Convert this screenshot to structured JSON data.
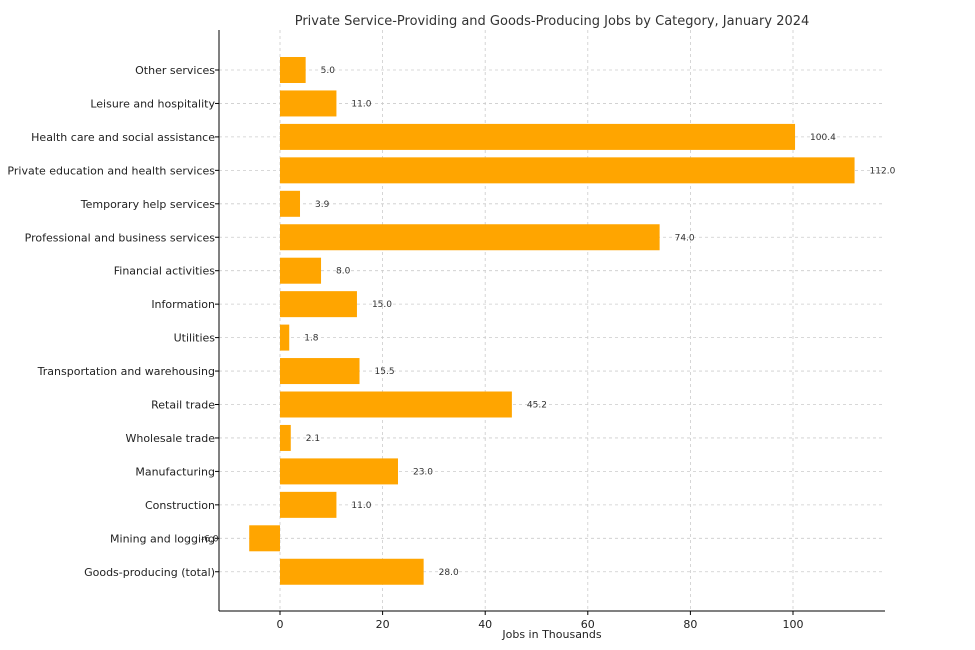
{
  "chart_data": {
    "type": "bar",
    "orientation": "horizontal",
    "title": "Private Service-Providing and Goods-Producing Jobs by Category, January 2024",
    "xlabel": "Jobs in Thousands",
    "ylabel": "",
    "xlim": [
      -12,
      118
    ],
    "xticks": [
      0,
      20,
      40,
      60,
      80,
      100
    ],
    "grid": true,
    "bar_color": "#FFA500",
    "categories": [
      "Other services",
      "Leisure and hospitality",
      "Health care and social assistance",
      "Private education and health services",
      "Temporary help services",
      "Professional and business services",
      "Financial activities",
      "Information",
      "Utilities",
      "Transportation and warehousing",
      "Retail trade",
      "Wholesale trade",
      "Manufacturing",
      "Construction",
      "Mining and logging",
      "Goods-producing (total)"
    ],
    "values": [
      5.0,
      11.0,
      100.4,
      112.0,
      3.9,
      74.0,
      8.0,
      15.0,
      1.8,
      15.5,
      45.2,
      2.1,
      23.0,
      11.0,
      -6.0,
      28.0
    ],
    "value_labels": [
      "5.0",
      "11.0",
      "100.4",
      "112.0",
      "3.9",
      "74.0",
      "8.0",
      "15.0",
      "1.8",
      "15.5",
      "45.2",
      "2.1",
      "23.0",
      "11.0",
      "-6.0",
      "28.0"
    ]
  }
}
